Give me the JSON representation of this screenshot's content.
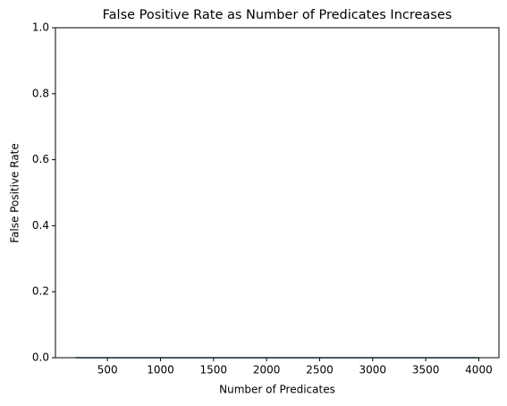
{
  "chart_data": {
    "type": "line",
    "title": "False Positive Rate as Number of Predicates Increases",
    "x_label": "Number of Predicates",
    "y_label": "False Positive Rate",
    "x": [
      200,
      400,
      600,
      800,
      1000,
      1200,
      1400,
      1600,
      1800,
      2000,
      2200,
      2400,
      2600,
      2800,
      3000,
      3200,
      3400,
      3600,
      3800,
      4000
    ],
    "series": [
      {
        "color": "#1f6f7f",
        "values": [
          0,
          0,
          0,
          0,
          0,
          0,
          0,
          0,
          0,
          0,
          0,
          0,
          0,
          0,
          0,
          0,
          0,
          0,
          0,
          0
        ]
      }
    ],
    "xlim": [
      10,
      4190
    ],
    "xticks": [
      500,
      1000,
      1500,
      2000,
      2500,
      3000,
      3500,
      4000
    ],
    "ylim": [
      0,
      1
    ],
    "yticks": [
      {
        "value": 0,
        "label": "0.0"
      },
      {
        "value": 0.2,
        "label": "0.2"
      },
      {
        "value": 0.4,
        "label": "0.4"
      },
      {
        "value": 0.6,
        "label": "0.6"
      },
      {
        "value": 0.8,
        "label": "0.8"
      },
      {
        "value": 1,
        "label": "1.0"
      }
    ]
  }
}
